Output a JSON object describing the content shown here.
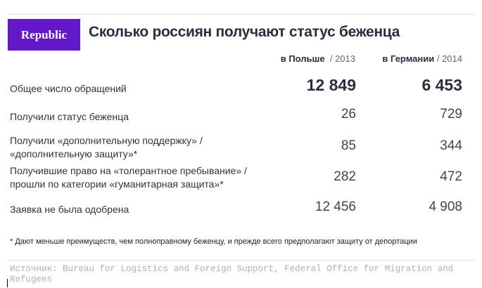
{
  "header": {
    "logo": "Republic",
    "title": "Сколько россиян получают статус беженца"
  },
  "columns": [
    {
      "country": "в Польше",
      "year": "/ 2013"
    },
    {
      "country": "в Германии",
      "year": "/ 2014"
    }
  ],
  "rows": [
    {
      "label": "Общее число обращений",
      "poland": "12 849",
      "germany": "6 453"
    },
    {
      "label": "Получили статус беженца",
      "poland": "26",
      "germany": "729"
    },
    {
      "label": "Получили «дополнительную поддержку» / «дополнительную защиту»*",
      "poland": "85",
      "germany": "344"
    },
    {
      "label": "Получившие право на «толерантное пребывание» / прошли по категории «гуманитарная защита»*",
      "poland": "282",
      "germany": "472"
    },
    {
      "label": "Заявка не была одобрена",
      "poland": "12 456",
      "germany": "4 908"
    }
  ],
  "footnote": "* Дают меньше преимуществ, чем полноправному беженцу, и прежде всего предполагают защиту от депортации",
  "source": "Источник: Bureau for Logistics and Foreign Support, Federal Office for Migration and Refugees"
}
